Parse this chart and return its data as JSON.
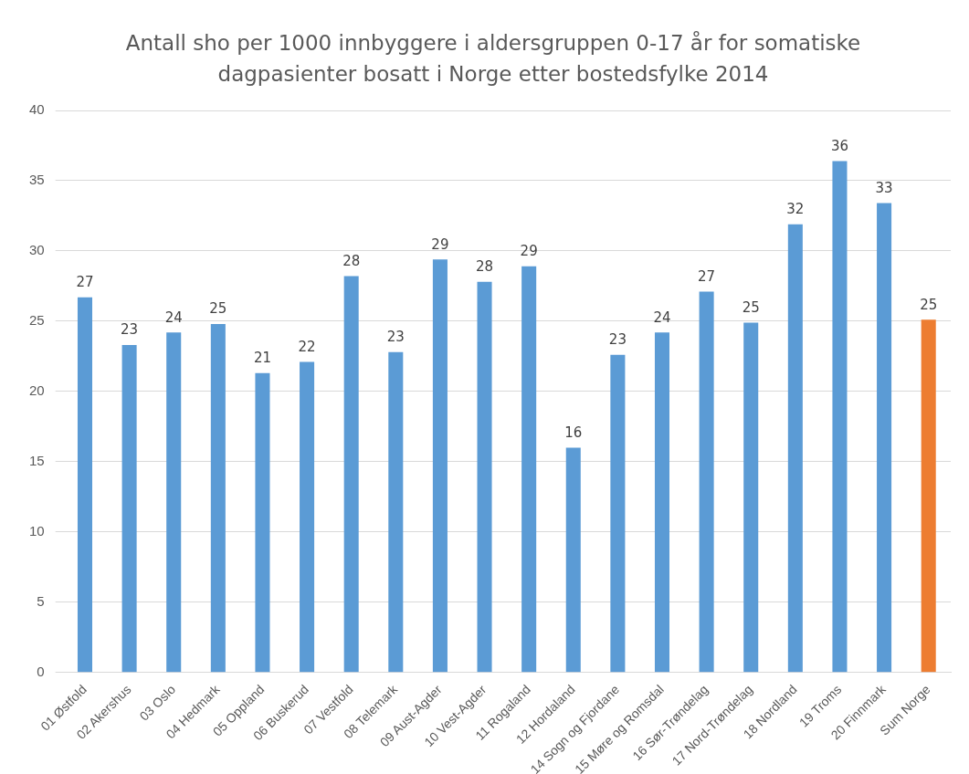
{
  "chart_data": {
    "type": "bar",
    "title": "Antall sho per 1000 innbyggere i aldersgruppen 0-17 år for somatiske dagpasienter bosatt i Norge etter bostedsfylke 2014",
    "categories": [
      "01 Østfold",
      "02 Akershus",
      "03 Oslo",
      "04 Hedmark",
      "05 Oppland",
      "06 Buskerud",
      "07 Vestfold",
      "08 Telemark",
      "09 Aust-Agder",
      "10 Vest-Agder",
      "11 Rogaland",
      "12 Hordaland",
      "14 Sogn og Fjordane",
      "15 Møre og Romsdal",
      "16 Sør-Trøndelag",
      "17 Nord-Trøndelag",
      "18 Nordland",
      "19 Troms",
      "20 Finnmark",
      "Sum Norge"
    ],
    "values": [
      26.7,
      23.3,
      24.2,
      24.8,
      21.3,
      22.1,
      28.2,
      22.8,
      29.4,
      27.8,
      28.9,
      16.0,
      22.6,
      24.2,
      27.1,
      24.9,
      31.9,
      36.4,
      33.4,
      25.1
    ],
    "value_labels": [
      "27",
      "23",
      "24",
      "25",
      "21",
      "22",
      "28",
      "23",
      "29",
      "28",
      "29",
      "16",
      "23",
      "24",
      "27",
      "25",
      "32",
      "36",
      "33",
      "25"
    ],
    "colors": [
      "#5b9bd5",
      "#5b9bd5",
      "#5b9bd5",
      "#5b9bd5",
      "#5b9bd5",
      "#5b9bd5",
      "#5b9bd5",
      "#5b9bd5",
      "#5b9bd5",
      "#5b9bd5",
      "#5b9bd5",
      "#5b9bd5",
      "#5b9bd5",
      "#5b9bd5",
      "#5b9bd5",
      "#5b9bd5",
      "#5b9bd5",
      "#5b9bd5",
      "#5b9bd5",
      "#ed7d31"
    ],
    "ylim": [
      0,
      40
    ],
    "yticks": [
      0,
      5,
      10,
      15,
      20,
      25,
      30,
      35,
      40
    ],
    "grid": "y",
    "legend": false
  }
}
